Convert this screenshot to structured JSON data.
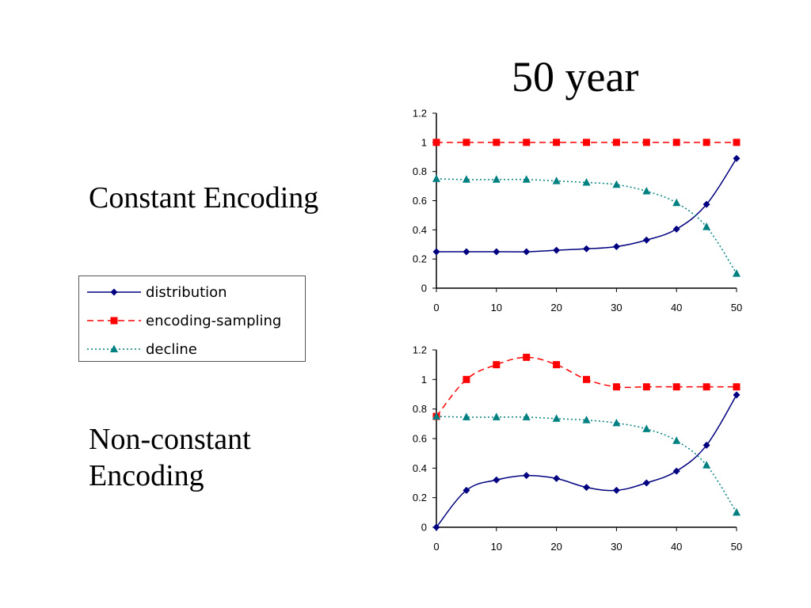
{
  "slide": {
    "title": "50 year",
    "label_constant": "Constant Encoding",
    "label_nonconstant": "Non-constant Encoding"
  },
  "legend": {
    "items": [
      {
        "label": "distribution",
        "color": "#000080",
        "marker": "diamond",
        "dash": "solid"
      },
      {
        "label": "encoding-sampling",
        "color": "#ff0000",
        "marker": "square",
        "dash": "dashed"
      },
      {
        "label": "decline",
        "color": "#008080",
        "marker": "triangle",
        "dash": "dotted"
      }
    ]
  },
  "chart_data": [
    {
      "type": "line",
      "x": [
        0,
        5,
        10,
        15,
        20,
        25,
        30,
        35,
        40,
        45,
        50
      ],
      "xlim": [
        0,
        50
      ],
      "ylim": [
        0,
        1.2
      ],
      "xticks": [
        "0",
        "10",
        "20",
        "30",
        "40",
        "50"
      ],
      "yticks": [
        "0",
        "0.2",
        "0.4",
        "0.6",
        "0.8",
        "1",
        "1.2"
      ],
      "series": [
        {
          "name": "distribution",
          "color": "#000080",
          "marker": "diamond",
          "values": [
            0.25,
            0.25,
            0.25,
            0.25,
            0.26,
            0.27,
            0.285,
            0.33,
            0.405,
            0.575,
            0.89
          ]
        },
        {
          "name": "encoding-sampling",
          "color": "#ff0000",
          "marker": "square",
          "values": [
            1,
            1,
            1,
            1,
            1,
            1,
            1,
            1,
            1,
            1,
            1
          ]
        },
        {
          "name": "decline",
          "color": "#008080",
          "marker": "triangle",
          "values": [
            0.75,
            0.745,
            0.745,
            0.745,
            0.735,
            0.725,
            0.71,
            0.665,
            0.585,
            0.42,
            0.1
          ]
        }
      ]
    },
    {
      "type": "line",
      "x": [
        0,
        5,
        10,
        15,
        20,
        25,
        30,
        35,
        40,
        45,
        50
      ],
      "xlim": [
        0,
        50
      ],
      "ylim": [
        0,
        1.2
      ],
      "xticks": [
        "0",
        "10",
        "20",
        "30",
        "40",
        "50"
      ],
      "yticks": [
        "0",
        "0.2",
        "0.4",
        "0.6",
        "0.8",
        "1",
        "1.2"
      ],
      "series": [
        {
          "name": "distribution",
          "color": "#000080",
          "marker": "diamond",
          "values": [
            0,
            0.25,
            0.32,
            0.35,
            0.33,
            0.27,
            0.25,
            0.3,
            0.38,
            0.555,
            0.895
          ]
        },
        {
          "name": "encoding-sampling",
          "color": "#ff0000",
          "marker": "square",
          "values": [
            0.75,
            1,
            1.1,
            1.15,
            1.1,
            1,
            0.95,
            0.95,
            0.95,
            0.95,
            0.95
          ]
        },
        {
          "name": "decline",
          "color": "#008080",
          "marker": "triangle",
          "values": [
            0.75,
            0.745,
            0.745,
            0.745,
            0.735,
            0.725,
            0.705,
            0.665,
            0.585,
            0.42,
            0.1
          ]
        }
      ]
    }
  ]
}
